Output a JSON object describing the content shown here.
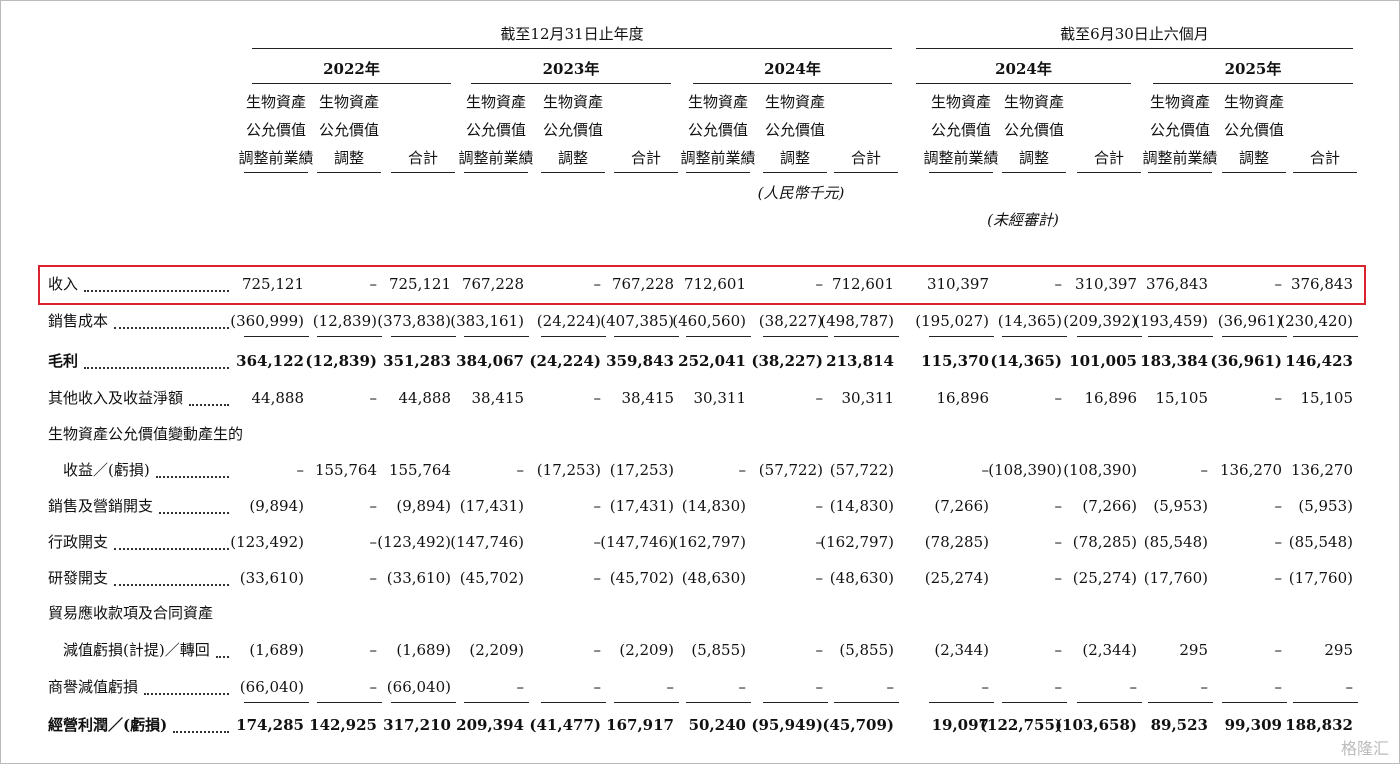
{
  "header": {
    "period_groups": [
      "截至12月31日止年度",
      "截至6月30日止六個月"
    ],
    "years": [
      "2022年",
      "2023年",
      "2024年",
      "2024年",
      "2025年"
    ],
    "column_headers": [
      [
        "生物資產",
        "公允價值",
        "調整前業績"
      ],
      [
        "生物資產",
        "公允價值",
        "調整"
      ],
      [
        "合計"
      ],
      [
        "生物資產",
        "公允價值",
        "調整前業績"
      ],
      [
        "生物資產",
        "公允價值",
        "調整"
      ],
      [
        "合計"
      ],
      [
        "生物資產",
        "公允價值",
        "調整前業績"
      ],
      [
        "生物資產",
        "公允價值",
        "調整"
      ],
      [
        "合計"
      ],
      [
        "生物資產",
        "公允價值",
        "調整前業績"
      ],
      [
        "生物資產",
        "公允價值",
        "調整"
      ],
      [
        "合計"
      ],
      [
        "生物資產",
        "公允價值",
        "調整前業績"
      ],
      [
        "生物資產",
        "公允價值",
        "調整"
      ],
      [
        "合計"
      ]
    ],
    "unit_note": "(人民幣千元)",
    "unaudited_note": "(未經審計)"
  },
  "rows": [
    {
      "label": [
        "收入"
      ],
      "highlight": true,
      "values": [
        "725,121",
        "–",
        "725,121",
        "767,228",
        "–",
        "767,228",
        "712,601",
        "–",
        "712,601",
        "310,397",
        "–",
        "310,397",
        "376,843",
        "–",
        "376,843"
      ]
    },
    {
      "label": [
        "銷售成本"
      ],
      "underline": true,
      "values": [
        "(360,999)",
        "(12,839)",
        "(373,838)",
        "(383,161)",
        "(24,224)",
        "(407,385)",
        "(460,560)",
        "(38,227)",
        "(498,787)",
        "(195,027)",
        "(14,365)",
        "(209,392)",
        "(193,459)",
        "(36,961)",
        "(230,420)"
      ]
    },
    {
      "label": [
        "毛利"
      ],
      "bold": true,
      "values": [
        "364,122",
        "(12,839)",
        "351,283",
        "384,067",
        "(24,224)",
        "359,843",
        "252,041",
        "(38,227)",
        "213,814",
        "115,370",
        "(14,365)",
        "101,005",
        "183,384",
        "(36,961)",
        "146,423"
      ]
    },
    {
      "label": [
        "其他收入及收益淨額"
      ],
      "values": [
        "44,888",
        "–",
        "44,888",
        "38,415",
        "–",
        "38,415",
        "30,311",
        "–",
        "30,311",
        "16,896",
        "–",
        "16,896",
        "15,105",
        "–",
        "15,105"
      ]
    },
    {
      "label": [
        "生物資產公允價值變動產生的",
        "收益／(虧損)"
      ],
      "values": [
        "–",
        "155,764",
        "155,764",
        "–",
        "(17,253)",
        "(17,253)",
        "–",
        "(57,722)",
        "(57,722)",
        "–",
        "(108,390)",
        "(108,390)",
        "–",
        "136,270",
        "136,270"
      ]
    },
    {
      "label": [
        "銷售及營銷開支"
      ],
      "values": [
        "(9,894)",
        "–",
        "(9,894)",
        "(17,431)",
        "–",
        "(17,431)",
        "(14,830)",
        "–",
        "(14,830)",
        "(7,266)",
        "–",
        "(7,266)",
        "(5,953)",
        "–",
        "(5,953)"
      ]
    },
    {
      "label": [
        "行政開支"
      ],
      "values": [
        "(123,492)",
        "–",
        "(123,492)",
        "(147,746)",
        "–",
        "(147,746)",
        "(162,797)",
        "–",
        "(162,797)",
        "(78,285)",
        "–",
        "(78,285)",
        "(85,548)",
        "–",
        "(85,548)"
      ]
    },
    {
      "label": [
        "研發開支"
      ],
      "values": [
        "(33,610)",
        "–",
        "(33,610)",
        "(45,702)",
        "–",
        "(45,702)",
        "(48,630)",
        "–",
        "(48,630)",
        "(25,274)",
        "–",
        "(25,274)",
        "(17,760)",
        "–",
        "(17,760)"
      ]
    },
    {
      "label": [
        "貿易應收款項及合同資產",
        "減值虧損(計提)／轉回"
      ],
      "values": [
        "(1,689)",
        "–",
        "(1,689)",
        "(2,209)",
        "–",
        "(2,209)",
        "(5,855)",
        "–",
        "(5,855)",
        "(2,344)",
        "–",
        "(2,344)",
        "295",
        "–",
        "295"
      ]
    },
    {
      "label": [
        "商譽減值虧損"
      ],
      "underline": true,
      "values": [
        "(66,040)",
        "–",
        "(66,040)",
        "–",
        "–",
        "–",
        "–",
        "–",
        "–",
        "–",
        "–",
        "–",
        "–",
        "–",
        "–"
      ]
    },
    {
      "label": [
        "經營利潤／(虧損)"
      ],
      "bold": true,
      "values": [
        "174,285",
        "142,925",
        "317,210",
        "209,394",
        "(41,477)",
        "167,917",
        "50,240",
        "(95,949)",
        "(45,709)",
        "19,097",
        "(122,755)",
        "(103,658)",
        "89,523",
        "99,309",
        "188,832"
      ]
    }
  ],
  "watermark": "格隆汇"
}
